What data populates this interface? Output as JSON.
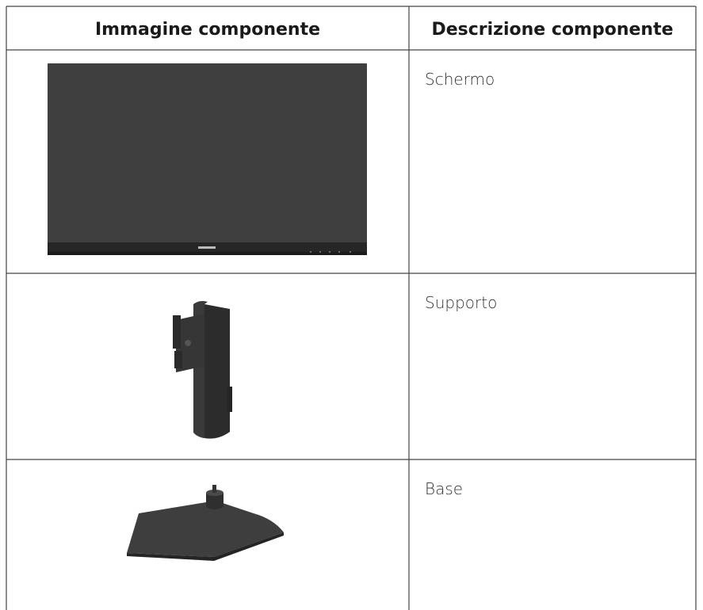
{
  "table": {
    "header": [
      "Immagine componente",
      "Descrizione componente"
    ],
    "rows": [
      [
        "Schermo"
      ],
      [
        "Supporto"
      ],
      [
        "Base"
      ]
    ]
  }
}
